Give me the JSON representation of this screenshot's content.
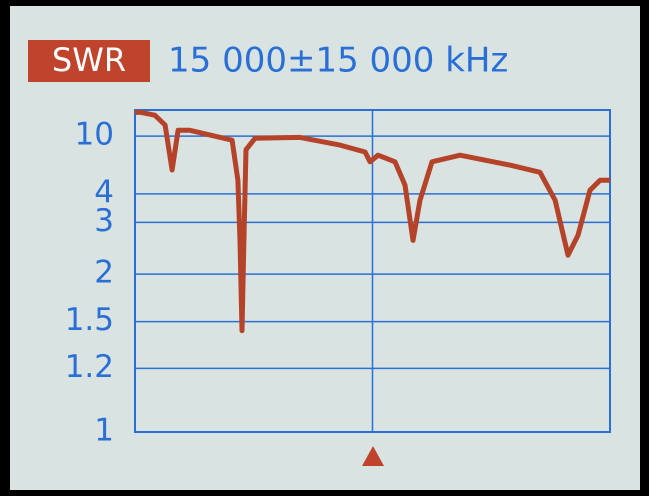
{
  "chart_data": {
    "type": "line",
    "badge": "SWR",
    "title": "15 000±15 000 kHz",
    "yscale": "swr",
    "xlim": [
      0,
      30000
    ],
    "ylim": [
      1,
      25
    ],
    "yticks": [
      1,
      1.2,
      1.5,
      2,
      3,
      4,
      10
    ],
    "grid": true,
    "series": [
      {
        "color": "#b5432a",
        "x": [
          0,
          300,
          1250,
          1900,
          2340,
          2720,
          3470,
          6130,
          6500,
          6630,
          6760,
          6880,
          7010,
          7580,
          10420,
          12950,
          14530,
          14840,
          15350,
          16420,
          17050,
          17560,
          18000,
          18760,
          20530,
          23680,
          25580,
          26530,
          27350,
          27980,
          28740,
          29370,
          30000
        ],
        "values": [
          22,
          22.3,
          19.4,
          13.5,
          5.4,
          11.6,
          11.6,
          9.1,
          4.7,
          2.57,
          1.43,
          2.57,
          7.5,
          9.5,
          9.7,
          8.2,
          7.2,
          6.1,
          6.8,
          6.1,
          4.43,
          2.57,
          3.73,
          6.1,
          6.8,
          5.8,
          5.23,
          3.73,
          2.29,
          2.68,
          4.17,
          4.7,
          4.7
        ]
      }
    ]
  }
}
